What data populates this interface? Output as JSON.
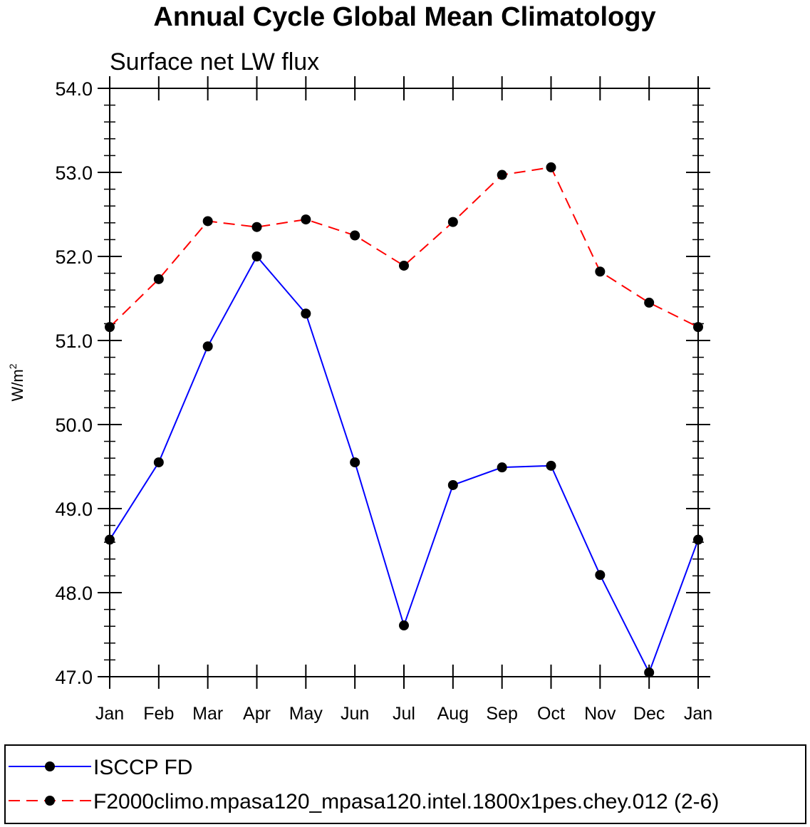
{
  "chart_data": {
    "type": "line",
    "title": "Annual Cycle Global Mean Climatology",
    "subtitle": "Surface net LW flux",
    "ylabel": "W/m",
    "ylabel_sup": "2",
    "xlabel": "",
    "ylim": [
      47.0,
      54.0
    ],
    "yticks": [
      "47.0",
      "48.0",
      "49.0",
      "50.0",
      "51.0",
      "52.0",
      "53.0",
      "54.0"
    ],
    "categories": [
      "Jan",
      "Feb",
      "Mar",
      "Apr",
      "May",
      "Jun",
      "Jul",
      "Aug",
      "Sep",
      "Oct",
      "Nov",
      "Dec",
      "Jan"
    ],
    "series": [
      {
        "name": "ISCCP FD",
        "color": "#0000ff",
        "dash": "solid",
        "values": [
          48.63,
          49.55,
          50.93,
          52.0,
          51.32,
          49.55,
          47.61,
          49.28,
          49.49,
          49.51,
          48.21,
          47.05,
          48.63
        ]
      },
      {
        "name": "F2000climo.mpasa120_mpasa120.intel.1800x1pes.chey.012 (2-6)",
        "color": "#ff0000",
        "dash": "dashed",
        "values": [
          51.16,
          51.73,
          52.42,
          52.35,
          52.44,
          52.25,
          51.89,
          52.41,
          52.97,
          53.06,
          51.82,
          51.45,
          51.16
        ]
      }
    ],
    "legend_position": "bottom"
  }
}
